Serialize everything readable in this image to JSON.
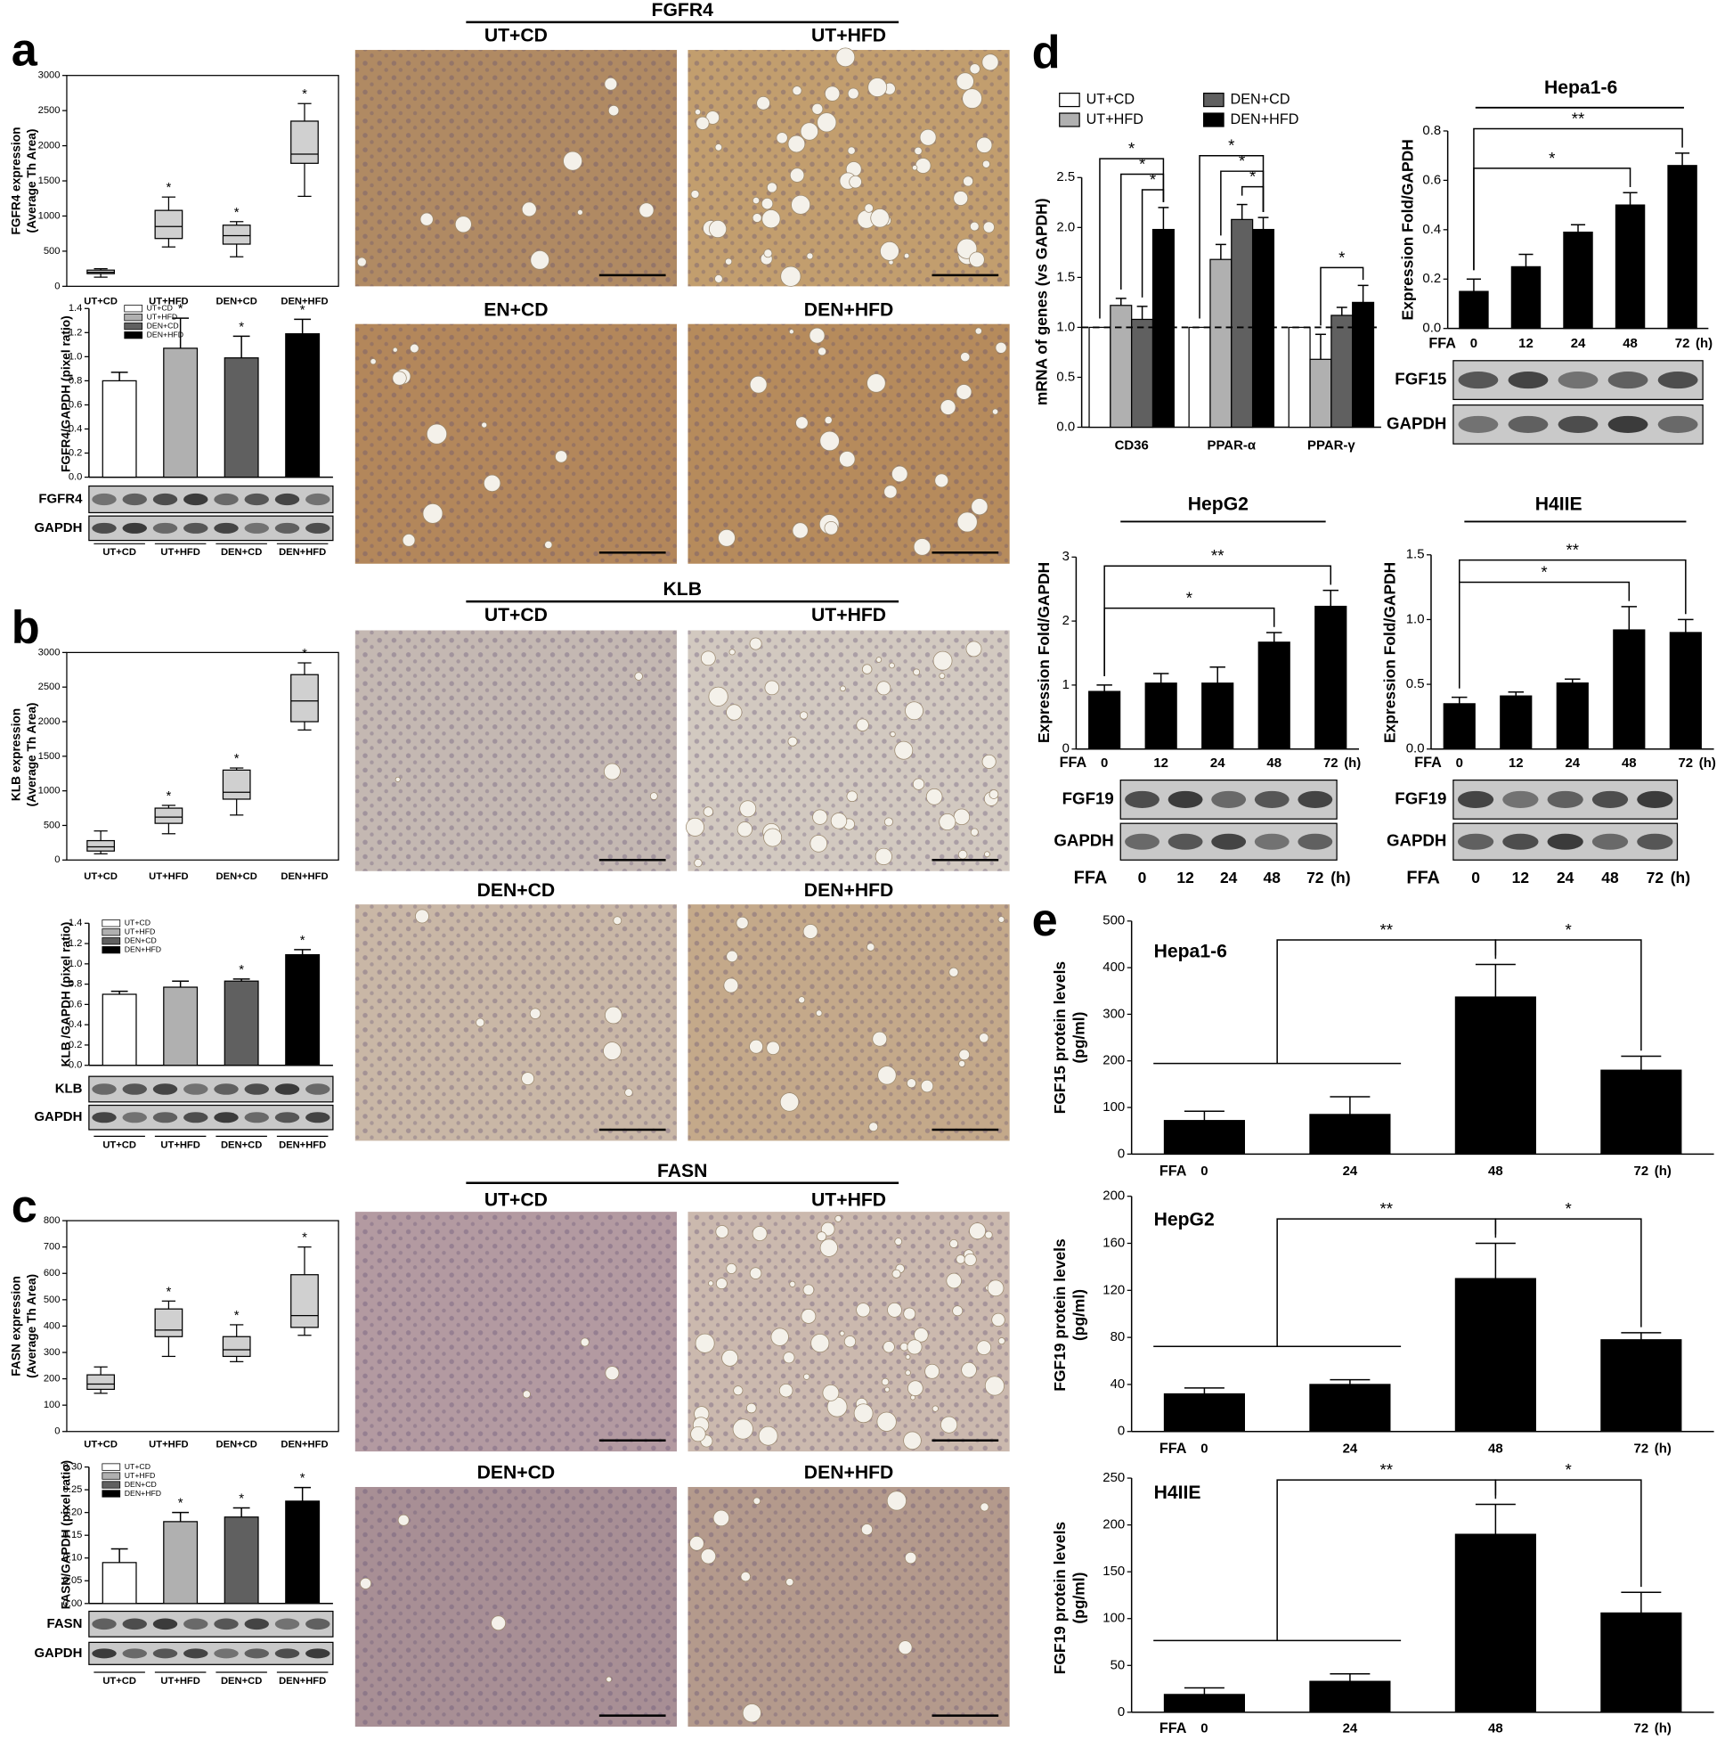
{
  "chart_data": [
    {
      "panel": "a",
      "type": "box",
      "ylabel": [
        "FGFR4 expression",
        "(Average Th Area)"
      ],
      "categories": [
        "UT+CD",
        "UT+HFD",
        "DEN+CD",
        "DEN+HFD"
      ],
      "boxes": [
        {
          "min": 130,
          "q1": 180,
          "median": 200,
          "q3": 230,
          "max": 250
        },
        {
          "min": 560,
          "q1": 680,
          "median": 850,
          "q3": 1080,
          "max": 1270
        },
        {
          "min": 420,
          "q1": 600,
          "median": 720,
          "q3": 870,
          "max": 920
        },
        {
          "min": 1280,
          "q1": 1750,
          "median": 1880,
          "q3": 2350,
          "max": 2600
        }
      ],
      "color": "#d0d0d0",
      "ylim": [
        0,
        3000
      ],
      "yticks": [
        0,
        500,
        1000,
        1500,
        2000,
        2500,
        3000
      ],
      "annotations": [
        {
          "category": 1,
          "label": "*"
        },
        {
          "category": 2,
          "label": "*"
        },
        {
          "category": 3,
          "label": "*"
        }
      ]
    },
    {
      "type": "bar",
      "ylabel": "FGFR4/GAPDH (pixel ratio)",
      "categories": [
        "UT+CD",
        "UT+HFD",
        "DEN+CD",
        "DEN+HFD"
      ],
      "values": [
        0.8,
        1.07,
        0.99,
        1.19
      ],
      "errors": [
        0.07,
        0.25,
        0.18,
        0.12
      ],
      "colors": [
        "#ffffff",
        "#b0b0b0",
        "#606060",
        "#000000"
      ],
      "legend": "upper left",
      "ylim": [
        0,
        1.4
      ],
      "yticks": [
        {
          "value": 0,
          "label": "0.0"
        },
        0.2,
        0.4,
        0.6,
        0.8,
        {
          "value": 1,
          "label": "1.0"
        },
        1.2,
        1.4
      ],
      "annotations": [
        {
          "category": 1,
          "label": "*"
        },
        {
          "category": 2,
          "label": "*"
        },
        {
          "category": 3,
          "label": "*"
        }
      ]
    },
    {
      "panel": "b",
      "type": "box",
      "ylabel": [
        "KLB expression",
        "(Average Th Area)"
      ],
      "categories": [
        "UT+CD",
        "UT+HFD",
        "DEN+CD",
        "DEN+HFD"
      ],
      "boxes": [
        {
          "min": 90,
          "q1": 130,
          "median": 190,
          "q3": 280,
          "max": 420
        },
        {
          "min": 380,
          "q1": 530,
          "median": 620,
          "q3": 750,
          "max": 790
        },
        {
          "min": 650,
          "q1": 880,
          "median": 980,
          "q3": 1300,
          "max": 1330
        },
        {
          "min": 1880,
          "q1": 2000,
          "median": 2300,
          "q3": 2680,
          "max": 2850
        }
      ],
      "color": "#d0d0d0",
      "ylim": [
        0,
        3000
      ],
      "yticks": [
        0,
        500,
        1000,
        1500,
        2000,
        2500,
        3000
      ],
      "annotations": [
        {
          "category": 1,
          "label": "*"
        },
        {
          "category": 2,
          "label": "*"
        },
        {
          "category": 3,
          "label": "*"
        }
      ]
    },
    {
      "type": "bar",
      "ylabel": "KLB /GAPDH (pixel ratio)",
      "categories": [
        "UT+CD",
        "UT+HFD",
        "DEN+CD",
        "DEN+HFD"
      ],
      "values": [
        0.7,
        0.77,
        0.83,
        1.09
      ],
      "errors": [
        0.03,
        0.06,
        0.02,
        0.05
      ],
      "colors": [
        "#ffffff",
        "#b0b0b0",
        "#606060",
        "#000000"
      ],
      "legend": "upper left",
      "ylim": [
        0,
        1.4
      ],
      "yticks": [
        {
          "value": 0,
          "label": "0.0"
        },
        0.2,
        0.4,
        0.6,
        0.8,
        {
          "value": 1,
          "label": "1.0"
        },
        1.2,
        1.4
      ],
      "annotations": [
        {
          "category": 2,
          "label": "*"
        },
        {
          "category": 3,
          "label": "*"
        }
      ]
    },
    {
      "panel": "c",
      "type": "box",
      "ylabel": [
        "FASN expression",
        "(Average Th Area)"
      ],
      "categories": [
        "UT+CD",
        "UT+HFD",
        "DEN+CD",
        "DEN+HFD"
      ],
      "boxes": [
        {
          "min": 145,
          "q1": 160,
          "median": 180,
          "q3": 215,
          "max": 245
        },
        {
          "min": 285,
          "q1": 360,
          "median": 385,
          "q3": 465,
          "max": 495
        },
        {
          "min": 265,
          "q1": 285,
          "median": 310,
          "q3": 360,
          "max": 405
        },
        {
          "min": 365,
          "q1": 395,
          "median": 440,
          "q3": 595,
          "max": 700
        }
      ],
      "color": "#d0d0d0",
      "ylim": [
        0,
        800
      ],
      "yticks": [
        0,
        100,
        200,
        300,
        400,
        500,
        600,
        700,
        800
      ],
      "annotations": [
        {
          "category": 1,
          "label": "*"
        },
        {
          "category": 2,
          "label": "*"
        },
        {
          "category": 3,
          "label": "*"
        }
      ]
    },
    {
      "type": "bar",
      "ylabel": "FASN/GAPDH (pixel ratio)",
      "categories": [
        "UT+CD",
        "UT+HFD",
        "DEN+CD",
        "DEN+HFD"
      ],
      "values": [
        0.09,
        0.18,
        0.19,
        0.225
      ],
      "errors": [
        0.03,
        0.02,
        0.02,
        0.03
      ],
      "colors": [
        "#ffffff",
        "#b0b0b0",
        "#606060",
        "#000000"
      ],
      "legend": "upper left",
      "ylim": [
        0,
        0.3
      ],
      "yticks": [
        {
          "value": 0,
          "label": "0.00"
        },
        0.05,
        {
          "value": 0.1,
          "label": "0.10"
        },
        0.15,
        {
          "value": 0.2,
          "label": "0.20"
        },
        0.25,
        {
          "value": 0.3,
          "label": "0.30"
        }
      ],
      "annotations": [
        {
          "category": 1,
          "label": "*"
        },
        {
          "category": 2,
          "label": "*"
        },
        {
          "category": 3,
          "label": "*"
        }
      ]
    },
    {
      "panel": "d",
      "type": "grouped_bar",
      "ylabel": "mRNA of genes (vs GAPDH)",
      "categories": [
        "CD36",
        "PPAR-α",
        "PPAR-γ"
      ],
      "series": [
        {
          "name": "UT+CD",
          "color": "#ffffff",
          "values": [
            1,
            1,
            1
          ]
        },
        {
          "name": "UT+HFD",
          "color": "#b0b0b0",
          "values": [
            1.22,
            1.68,
            0.68
          ],
          "errors": [
            0.07,
            0.15,
            0.25
          ]
        },
        {
          "name": "DEN+CD",
          "color": "#606060",
          "values": [
            1.08,
            2.08,
            1.12
          ],
          "errors": [
            0.13,
            0.15,
            0.08
          ]
        },
        {
          "name": "DEN+HFD",
          "color": "#000000",
          "values": [
            1.98,
            1.98,
            1.25
          ],
          "errors": [
            0.22,
            0.12,
            0.17
          ]
        }
      ],
      "reference_line": 1,
      "legend": "top",
      "ylim": [
        0,
        2.5
      ],
      "yticks": [
        {
          "value": 0,
          "label": "0.0"
        },
        0.5,
        {
          "value": 1,
          "label": "1.0"
        },
        1.5,
        {
          "value": 2,
          "label": "2.0"
        },
        2.5
      ],
      "comparisons": [
        {
          "category": 0,
          "from": 2,
          "to": 3,
          "label": "*"
        },
        {
          "category": 0,
          "from": 1,
          "to": 3,
          "label": "*"
        },
        {
          "category": 0,
          "from": 0,
          "to": 3,
          "label": "*"
        },
        {
          "category": 1,
          "from": 2,
          "to": 3,
          "label": "*"
        },
        {
          "category": 1,
          "from": 1,
          "to": 3,
          "label": "*"
        },
        {
          "category": 1,
          "from": 0,
          "to": 3,
          "label": "*"
        },
        {
          "category": 2,
          "from": 1,
          "to": 3,
          "label": "*"
        }
      ]
    },
    {
      "type": "bar",
      "title": "Hepa1-6",
      "ylabel": "Expression Fold/GAPDH",
      "xlabel": "FFA",
      "xunit": "(h)",
      "categories": [
        "0",
        "12",
        "24",
        "48",
        "72"
      ],
      "values": [
        0.15,
        0.25,
        0.39,
        0.5,
        0.66
      ],
      "errors": [
        0.05,
        0.05,
        0.03,
        0.05,
        0.05
      ],
      "color": "#000000",
      "ylim": [
        0,
        0.8
      ],
      "yticks": [
        {
          "value": 0,
          "label": "0.0"
        },
        0.2,
        0.4,
        0.6,
        0.8
      ],
      "comparisons": [
        {
          "from": 0,
          "to": 3,
          "label": "*"
        },
        {
          "from": 0,
          "to": 4,
          "label": "**"
        }
      ]
    },
    {
      "type": "bar",
      "title": "HepG2",
      "ylabel": "Expression Fold/GAPDH",
      "xlabel": "FFA",
      "xunit": "(h)",
      "categories": [
        "0",
        "12",
        "24",
        "48",
        "72"
      ],
      "values": [
        0.9,
        1.03,
        1.03,
        1.67,
        2.23
      ],
      "errors": [
        0.1,
        0.15,
        0.25,
        0.15,
        0.25
      ],
      "color": "#000000",
      "ylim": [
        0,
        3
      ],
      "yticks": [
        0,
        1,
        2,
        3
      ],
      "comparisons": [
        {
          "from": 0,
          "to": 3,
          "label": "*"
        },
        {
          "from": 0,
          "to": 4,
          "label": "**"
        }
      ]
    },
    {
      "type": "bar",
      "title": "H4IIE",
      "ylabel": "Expression Fold/GAPDH",
      "xlabel": "FFA",
      "xunit": "(h)",
      "categories": [
        "0",
        "12",
        "24",
        "48",
        "72"
      ],
      "values": [
        0.35,
        0.41,
        0.51,
        0.92,
        0.9
      ],
      "errors": [
        0.05,
        0.03,
        0.03,
        0.18,
        0.1
      ],
      "color": "#000000",
      "ylim": [
        0,
        1.5
      ],
      "yticks": [
        {
          "value": 0,
          "label": "0.0"
        },
        0.5,
        {
          "value": 1,
          "label": "1.0"
        },
        1.5
      ],
      "comparisons": [
        {
          "from": 0,
          "to": 3,
          "label": "*"
        },
        {
          "from": 0,
          "to": 4,
          "label": "**"
        }
      ]
    },
    {
      "panel": "e",
      "type": "bar",
      "title": "Hepa1-6",
      "ylabel": [
        "FGF15 protein levels",
        "(pg/ml)"
      ],
      "xlabel": "FFA",
      "xunit": "(h)",
      "categories": [
        "0",
        "24",
        "48",
        "72"
      ],
      "values": [
        72,
        85,
        337,
        180
      ],
      "errors": [
        20,
        38,
        70,
        30
      ],
      "color": "#000000",
      "ylim": [
        0,
        500
      ],
      "yticks": [
        0,
        100,
        200,
        300,
        400,
        500
      ],
      "comparisons": [
        {
          "from": [
            0,
            1
          ],
          "to": 2,
          "label": "**"
        },
        {
          "from": 2,
          "to": 3,
          "label": "*"
        }
      ]
    },
    {
      "type": "bar",
      "title": "HepG2",
      "ylabel": [
        "FGF19 protein levels",
        "(pg/ml)"
      ],
      "xlabel": "FFA",
      "xunit": "(h)",
      "categories": [
        "0",
        "24",
        "48",
        "72"
      ],
      "values": [
        32,
        40,
        130,
        78
      ],
      "errors": [
        5,
        4,
        30,
        6
      ],
      "color": "#000000",
      "ylim": [
        0,
        200
      ],
      "yticks": [
        0,
        40,
        80,
        120,
        160,
        200
      ],
      "comparisons": [
        {
          "from": [
            0,
            1
          ],
          "to": 2,
          "label": "**"
        },
        {
          "from": 2,
          "to": 3,
          "label": "*"
        }
      ]
    },
    {
      "type": "bar",
      "title": "H4IIE",
      "ylabel": [
        "FGF19 protein levels",
        "(pg/ml)"
      ],
      "xlabel": "FFA",
      "xunit": "(h)",
      "categories": [
        "0",
        "24",
        "48",
        "72"
      ],
      "values": [
        19,
        33,
        190,
        106
      ],
      "errors": [
        7,
        8,
        32,
        22
      ],
      "color": "#000000",
      "ylim": [
        0,
        250
      ],
      "yticks": [
        0,
        50,
        100,
        150,
        200,
        250
      ],
      "comparisons": [
        {
          "from": [
            0,
            1
          ],
          "to": 2,
          "label": "**"
        },
        {
          "from": 2,
          "to": 3,
          "label": "*"
        }
      ]
    }
  ],
  "micrographs": [
    {
      "title": "FGFR4",
      "labels": [
        "UT+CD",
        "UT+HFD",
        "EN+CD",
        "DEN+HFD"
      ]
    },
    {
      "title": "KLB",
      "labels": [
        "UT+CD",
        "UT+HFD",
        "DEN+CD",
        "DEN+HFD"
      ]
    },
    {
      "title": "FASN",
      "labels": [
        "UT+CD",
        "UT+HFD",
        "DEN+CD",
        "DEN+HFD"
      ]
    }
  ],
  "blots": [
    {
      "labels": [
        "FGFR4",
        "GAPDH"
      ]
    },
    {
      "labels": [
        "KLB",
        "GAPDH"
      ]
    },
    {
      "labels": [
        "FASN",
        "GAPDH"
      ]
    },
    {
      "labels": [
        "FGF15",
        "GAPDH"
      ]
    },
    {
      "labels": [
        "FGF19",
        "GAPDH"
      ]
    },
    {
      "labels": [
        "FGF19",
        "GAPDH"
      ]
    }
  ]
}
